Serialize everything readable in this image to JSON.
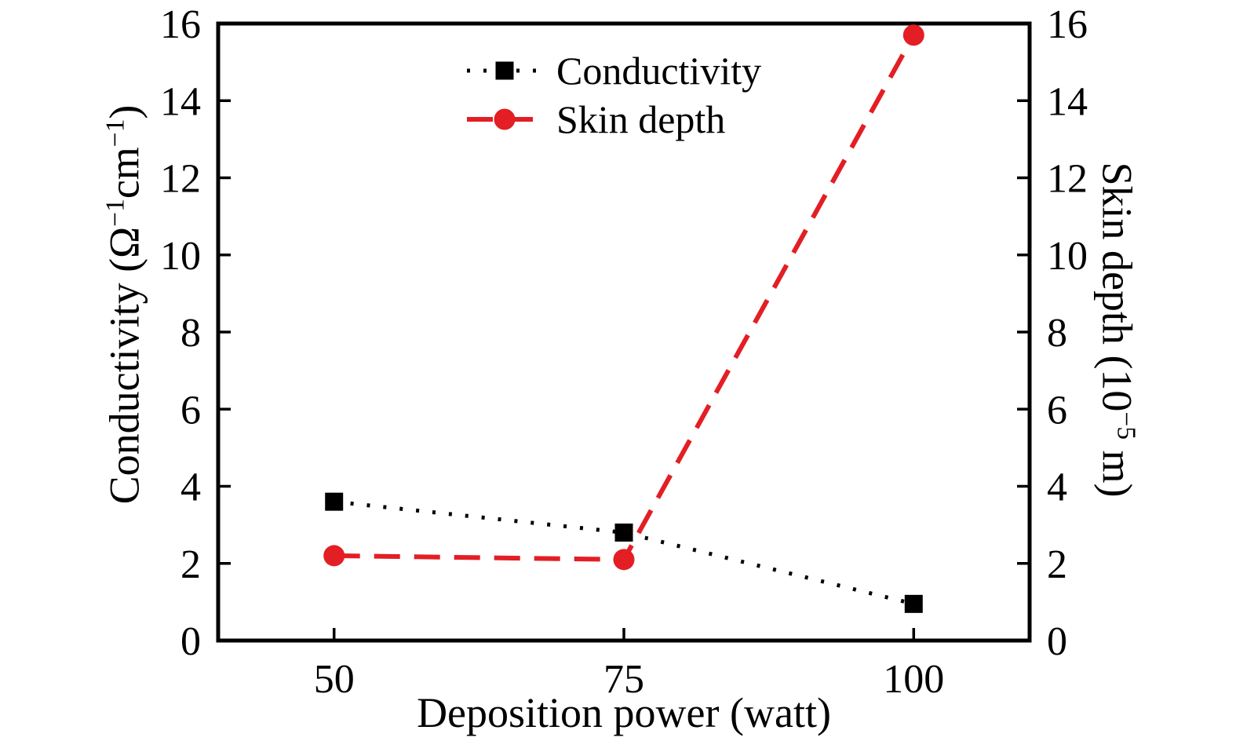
{
  "figure": {
    "background": "#ffffff",
    "frame_color": "#000000"
  },
  "chart_data": {
    "type": "line",
    "x": [
      50,
      75,
      100
    ],
    "x_ticks": [
      50,
      75,
      100
    ],
    "y_ticks": [
      0,
      2,
      4,
      6,
      8,
      10,
      12,
      14,
      16
    ],
    "xlim": [
      40,
      110
    ],
    "ylim_left": [
      0,
      16
    ],
    "ylim_right": [
      0,
      16
    ],
    "grid": false,
    "legend_position": "upper center",
    "xlabel": "Deposition power (watt)",
    "ylabel_left": "Conductivity (Ω⁻¹cm⁻¹)",
    "ylabel_right": "Skin depth (10⁻⁵ m)",
    "ylabel_left_parts": {
      "p0": "Conductivity (Ω",
      "s0": "−1",
      "p1": "cm",
      "s1": "−1",
      "p2": ")"
    },
    "ylabel_right_parts": {
      "p0": "Skin depth (10",
      "s0": "−5",
      "p1": " m)"
    },
    "series": [
      {
        "name": "Conductivity",
        "axis": "left",
        "marker": "square",
        "line_style": "dotted",
        "color": "#000000",
        "values": [
          3.6,
          2.8,
          0.95
        ]
      },
      {
        "name": "Skin depth",
        "axis": "right",
        "marker": "circle",
        "line_style": "dashed",
        "color": "#e31e24",
        "values": [
          2.2,
          2.1,
          15.7
        ]
      }
    ]
  }
}
